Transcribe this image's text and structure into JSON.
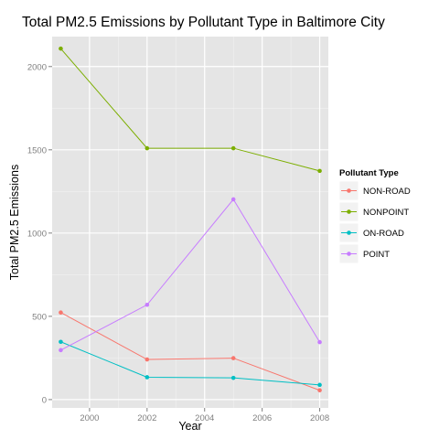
{
  "chart_data": {
    "type": "line",
    "title": "Total PM2.5 Emissions by Pollutant Type in Baltimore City",
    "xlabel": "Year",
    "ylabel": "Total PM2.5 Emissions",
    "x": [
      1999,
      2002,
      2005,
      2008
    ],
    "xlim": [
      1998.7,
      2008.3
    ],
    "ylim": [
      -50,
      2180
    ],
    "x_ticks": [
      2000,
      2002,
      2004,
      2006,
      2008
    ],
    "y_ticks": [
      0,
      500,
      1000,
      1500,
      2000
    ],
    "grid": true,
    "legend_title": "Pollutant Type",
    "legend_position": "right",
    "series": [
      {
        "name": "NON-ROAD",
        "color": "#F8766D",
        "values": [
          522.94,
          240.85,
          248.93,
          55.82
        ]
      },
      {
        "name": "NONPOINT",
        "color": "#7CAE00",
        "values": [
          2107.62,
          1509.5,
          1509.5,
          1373.21
        ]
      },
      {
        "name": "ON-ROAD",
        "color": "#00BFC4",
        "values": [
          346.82,
          134.31,
          130.43,
          88.28
        ]
      },
      {
        "name": "POINT",
        "color": "#C77CFF",
        "values": [
          296.8,
          569.26,
          1202.49,
          344.98
        ]
      }
    ]
  }
}
